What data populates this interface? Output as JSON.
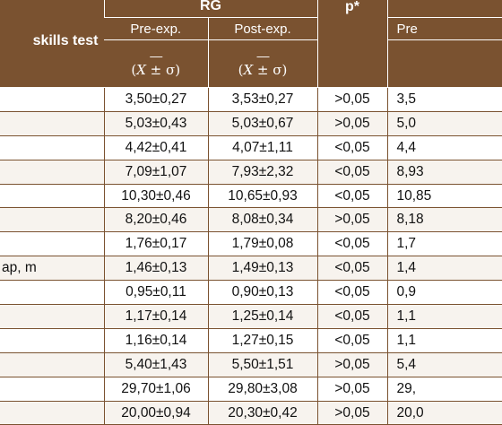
{
  "table": {
    "header": {
      "row_label": "skills test",
      "group_rg": "RG",
      "p_label": "p*",
      "group_right_partial": "",
      "pre_label": "Pre-exp.",
      "post_label": "Post-exp.",
      "pre_label_right_partial": "Pre",
      "mean_bar": "—",
      "mean_symbol": "(𝑋 ± σ)"
    },
    "rows": [
      {
        "label": "",
        "pre": "3,50±0,27",
        "post": "3,53±0,27",
        "p": ">0,05",
        "right": "3,5"
      },
      {
        "label": "",
        "pre": "5,03±0,43",
        "post": "5,03±0,67",
        "p": ">0,05",
        "right": "5,0"
      },
      {
        "label": "",
        "pre": "4,42±0,41",
        "post": "4,07±1,11",
        "p": "<0,05",
        "right": "4,4"
      },
      {
        "label": "",
        "pre": "7,09±1,07",
        "post": "7,93±2,32",
        "p": "<0,05",
        "right": "8,93"
      },
      {
        "label": "",
        "pre": "10,30±0,46",
        "post": "10,65±0,93",
        "p": "<0,05",
        "right": "10,85"
      },
      {
        "label": "",
        "pre": "8,20±0,46",
        "post": "8,08±0,34",
        "p": ">0,05",
        "right": "8,18"
      },
      {
        "label": "",
        "pre": "1,76±0,17",
        "post": "1,79±0,08",
        "p": "<0,05",
        "right": "1,7"
      },
      {
        "label": "ap, m",
        "pre": "1,46±0,13",
        "post": "1,49±0,13",
        "p": "<0,05",
        "right": "1,4"
      },
      {
        "label": "",
        "pre": "0,95±0,11",
        "post": "0,90±0,13",
        "p": "<0,05",
        "right": "0,9"
      },
      {
        "label": "",
        "pre": "1,17±0,14",
        "post": "1,25±0,14",
        "p": "<0,05",
        "right": "1,1"
      },
      {
        "label": "",
        "pre": "1,16±0,14",
        "post": "1,27±0,15",
        "p": "<0,05",
        "right": "1,1"
      },
      {
        "label": "",
        "pre": "5,40±1,43",
        "post": "5,50±1,51",
        "p": ">0,05",
        "right": "5,4"
      },
      {
        "label": "",
        "pre": "29,70±1,06",
        "post": "29,80±3,08",
        "p": ">0,05",
        "right": "29,"
      },
      {
        "label": "",
        "pre": "20,00±0,94",
        "post": "20,30±0,42",
        "p": ">0,05",
        "right": "20,0"
      }
    ]
  }
}
